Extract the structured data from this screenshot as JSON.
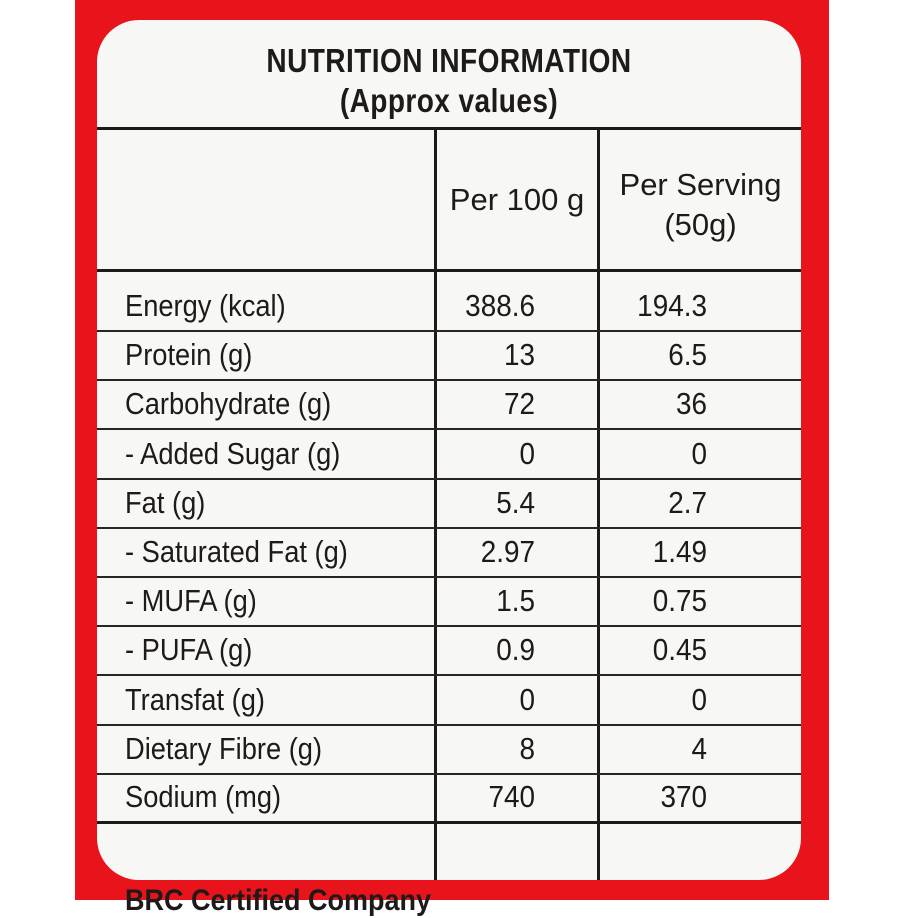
{
  "colors": {
    "background_red": "#e8131b",
    "panel": "#f7f7f5",
    "ink": "#1e1a1a"
  },
  "title": "NUTRITION INFORMATION",
  "subtitle": "(Approx values)",
  "columns": {
    "nutrient": "",
    "per100": "Per 100 g",
    "per_serving_line1": "Per Serving",
    "per_serving_line2": "(50g)"
  },
  "rows": [
    {
      "label": "Energy (kcal)",
      "per100": "388.6",
      "serving": "194.3"
    },
    {
      "label": "Protein (g)",
      "per100": "13",
      "serving": "6.5"
    },
    {
      "label": "Carbohydrate (g)",
      "per100": "72",
      "serving": "36"
    },
    {
      "label": " - Added Sugar (g)",
      "per100": "0",
      "serving": "0"
    },
    {
      "label": "Fat (g)",
      "per100": "5.4",
      "serving": "2.7"
    },
    {
      "label": "- Saturated Fat (g)",
      "per100": "2.97",
      "serving": "1.49"
    },
    {
      "label": "- MUFA (g)",
      "per100": "1.5",
      "serving": "0.75"
    },
    {
      "label": "- PUFA (g)",
      "per100": "0.9",
      "serving": "0.45"
    },
    {
      "label": "Transfat (g)",
      "per100": "0",
      "serving": "0"
    },
    {
      "label": "Dietary Fibre (g)",
      "per100": "8",
      "serving": "4"
    },
    {
      "label": "Sodium (mg)",
      "per100": "740",
      "serving": "370"
    }
  ],
  "footer": "BRC Certified Company"
}
